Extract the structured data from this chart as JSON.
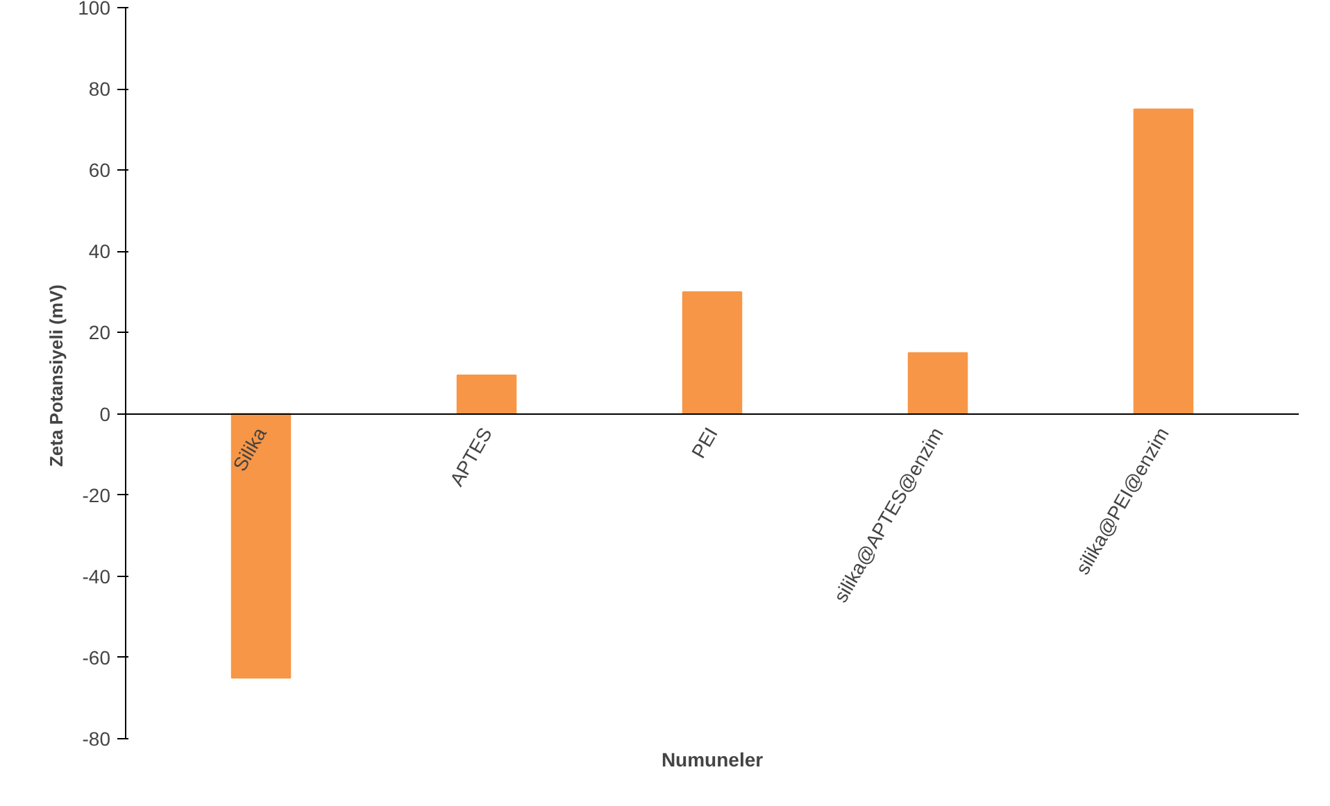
{
  "chart_data": {
    "type": "bar",
    "xlabel": "Numuneler",
    "ylabel": "Zeta Potansiyeli  (mV)",
    "categories": [
      "Silika",
      "APTES",
      "PEI",
      "silika@APTES@enzim",
      "silika@PEI@enzim"
    ],
    "values": [
      -65,
      9.5,
      30,
      15,
      75
    ],
    "color": "#f79646",
    "ylim": [
      -80,
      100
    ],
    "yticks": [
      -80,
      -60,
      -40,
      -20,
      0,
      20,
      40,
      60,
      80,
      100
    ],
    "grid": false
  }
}
